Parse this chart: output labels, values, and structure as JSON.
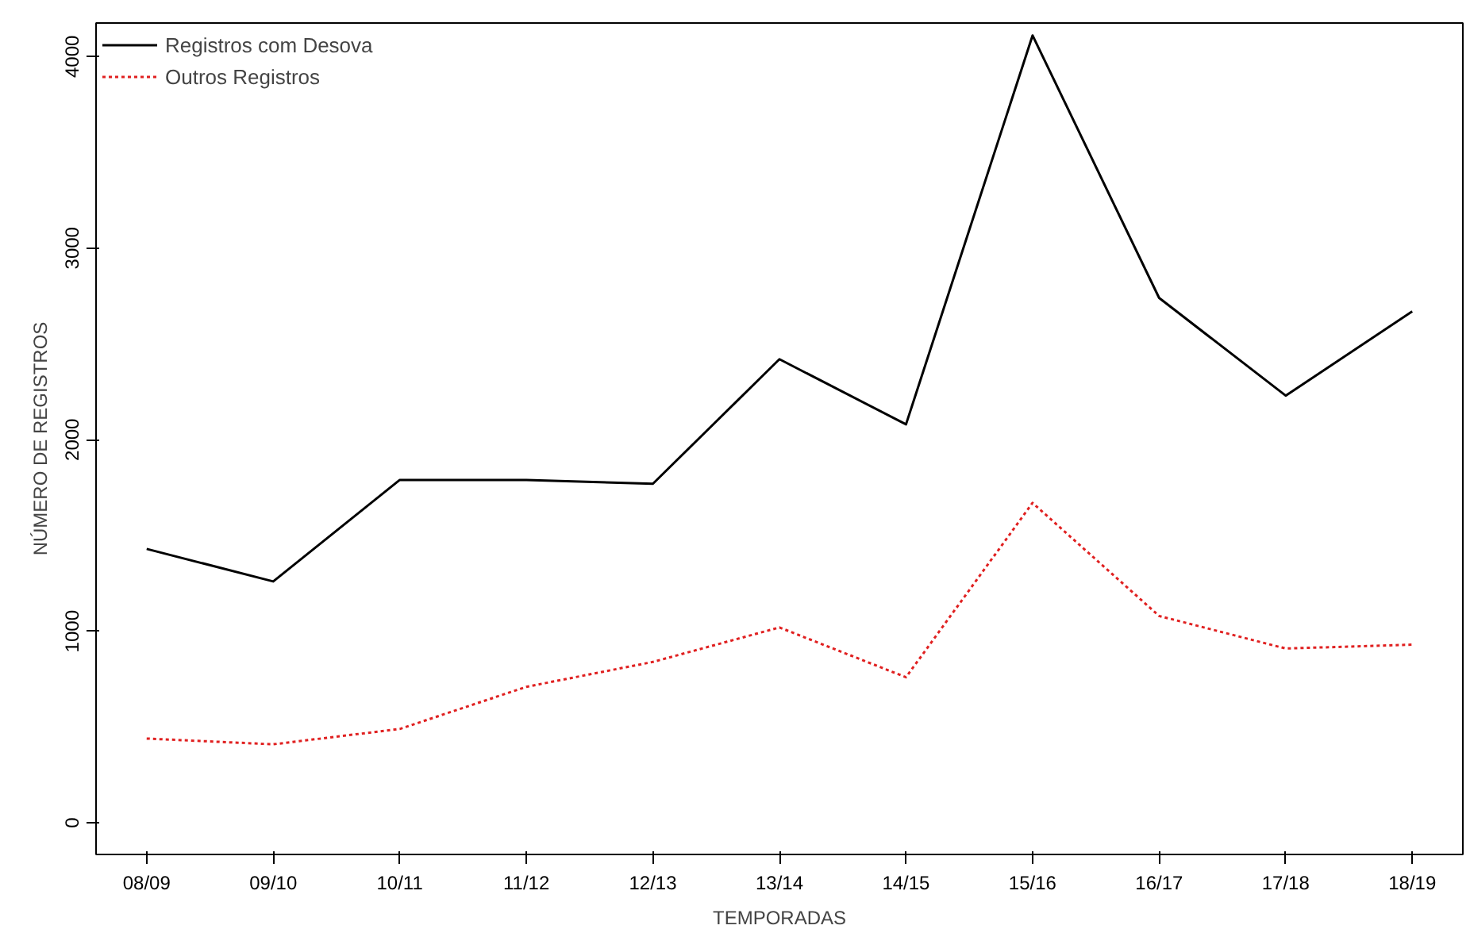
{
  "chart_data": {
    "type": "line",
    "xlabel": "TEMPORADAS",
    "ylabel": "NÚMERO DE REGISTROS",
    "categories": [
      "08/09",
      "09/10",
      "10/11",
      "11/12",
      "12/13",
      "13/14",
      "14/15",
      "15/16",
      "16/17",
      "17/18",
      "18/19"
    ],
    "series": [
      {
        "name": "Registros com Desova",
        "color": "#000000",
        "line_style": "solid",
        "values": [
          1430,
          1260,
          1790,
          1790,
          1770,
          2420,
          2080,
          4110,
          2740,
          2230,
          2670
        ]
      },
      {
        "name": "Outros Registros",
        "color": "#e02020",
        "line_style": "dotted",
        "values": [
          440,
          410,
          490,
          710,
          840,
          1020,
          760,
          1670,
          1080,
          910,
          930
        ]
      }
    ],
    "ylim": [
      -165,
      4175
    ],
    "yticks": [
      0,
      1000,
      2000,
      3000,
      4000
    ],
    "grid": false,
    "legend": "top left",
    "marker": "none"
  }
}
